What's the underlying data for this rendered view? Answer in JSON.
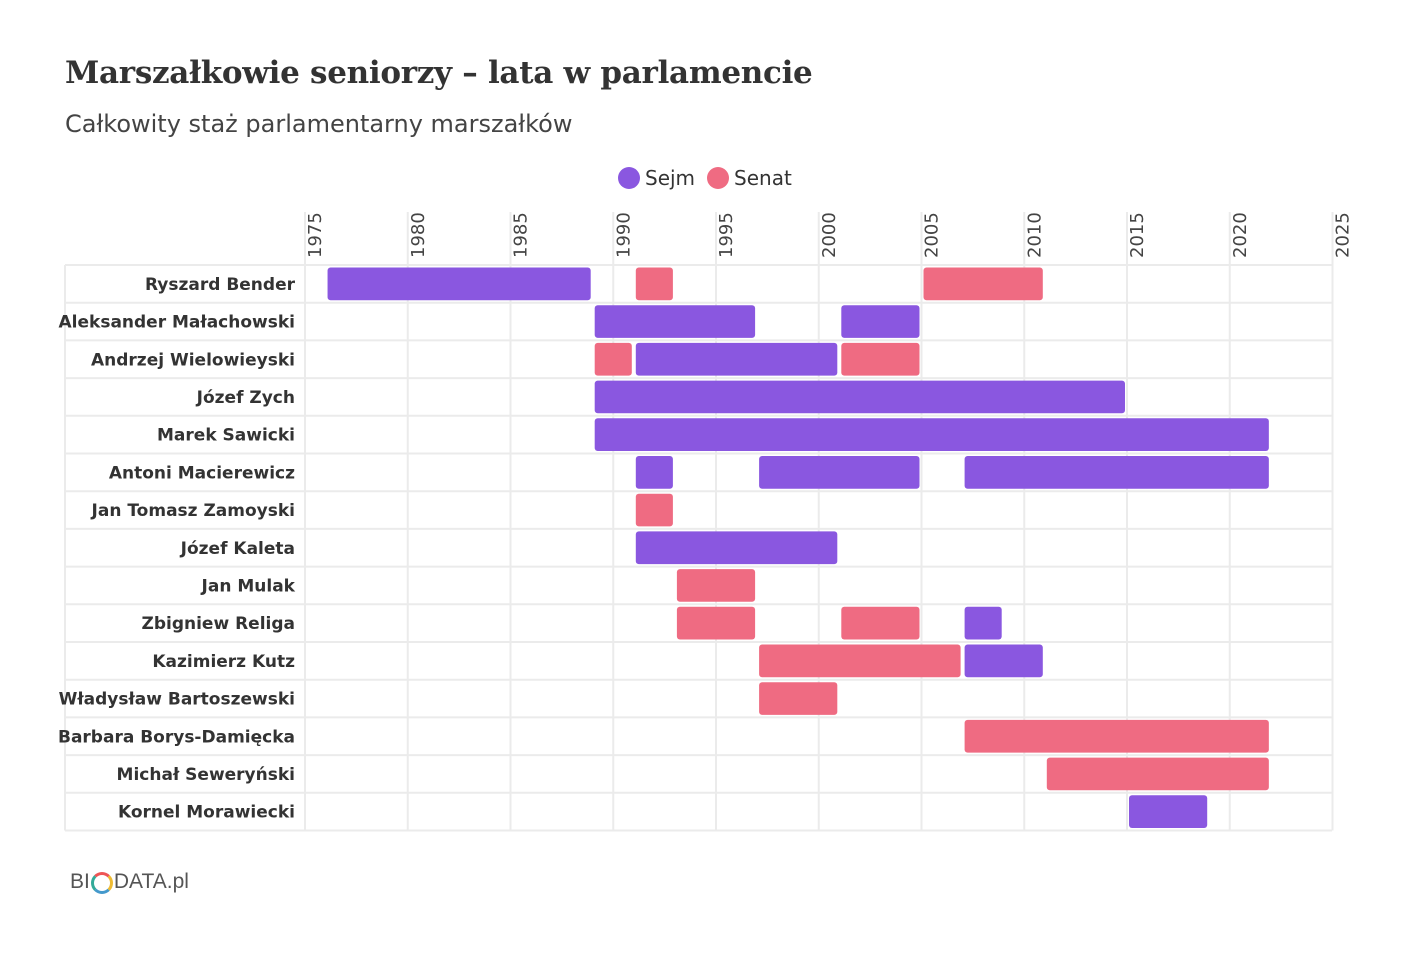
{
  "header": {
    "title": "Marszałkowie seniorzy – lata w parlamencie",
    "subtitle": "Całkowity staż parlamentarny marszałków"
  },
  "legend": {
    "sejm": "Sejm",
    "senat": "Senat"
  },
  "colors": {
    "sejm": "#8a57e0",
    "senat": "#ef6b82"
  },
  "logo": {
    "part1": "BI",
    "part2": "DATA.pl"
  },
  "chart_data": {
    "type": "bar",
    "orientation": "horizontal-timeline",
    "xlim": [
      1969,
      2025
    ],
    "x_ticks": [
      1975,
      1980,
      1985,
      1990,
      1995,
      2000,
      2005,
      2010,
      2015,
      2020,
      2025
    ],
    "grid": true,
    "legend_position": "top-center",
    "categories": [
      "Ryszard Bender",
      "Aleksander Małachowski",
      "Andrzej Wielowieyski",
      "Józef Zych",
      "Marek Sawicki",
      "Antoni Macierewicz",
      "Jan Tomasz Zamoyski",
      "Józef Kaleta",
      "Jan Mulak",
      "Zbigniew Religa",
      "Kazimierz Kutz",
      "Władysław Bartoszewski",
      "Barbara Borys-Damięcka",
      "Michał Seweryński",
      "Kornel Morawiecki"
    ],
    "series": [
      {
        "name": "Sejm",
        "segments": [
          {
            "row": 0,
            "start": 1976.0,
            "end": 1989.0
          },
          {
            "row": 1,
            "start": 1989.0,
            "end": 1997.0
          },
          {
            "row": 1,
            "start": 2001.0,
            "end": 2005.0
          },
          {
            "row": 2,
            "start": 1991.0,
            "end": 2001.0
          },
          {
            "row": 3,
            "start": 1989.0,
            "end": 2015.0
          },
          {
            "row": 4,
            "start": 1989.0,
            "end": 2022.0
          },
          {
            "row": 5,
            "start": 1991.0,
            "end": 1993.0
          },
          {
            "row": 5,
            "start": 1997.0,
            "end": 2005.0
          },
          {
            "row": 5,
            "start": 2007.0,
            "end": 2022.0
          },
          {
            "row": 7,
            "start": 1991.0,
            "end": 2001.0
          },
          {
            "row": 9,
            "start": 2007.0,
            "end": 2009.0
          },
          {
            "row": 10,
            "start": 2007.0,
            "end": 2011.0
          },
          {
            "row": 14,
            "start": 2015.0,
            "end": 2019.0
          }
        ]
      },
      {
        "name": "Senat",
        "segments": [
          {
            "row": 0,
            "start": 1991.0,
            "end": 1993.0
          },
          {
            "row": 0,
            "start": 2005.0,
            "end": 2011.0
          },
          {
            "row": 2,
            "start": 1989.0,
            "end": 1991.0
          },
          {
            "row": 2,
            "start": 2001.0,
            "end": 2005.0
          },
          {
            "row": 6,
            "start": 1991.0,
            "end": 1993.0
          },
          {
            "row": 8,
            "start": 1993.0,
            "end": 1997.0
          },
          {
            "row": 9,
            "start": 1993.0,
            "end": 1997.0
          },
          {
            "row": 9,
            "start": 2001.0,
            "end": 2005.0
          },
          {
            "row": 10,
            "start": 1997.0,
            "end": 2007.0
          },
          {
            "row": 11,
            "start": 1997.0,
            "end": 2001.0
          },
          {
            "row": 12,
            "start": 2007.0,
            "end": 2022.0
          },
          {
            "row": 13,
            "start": 2011.0,
            "end": 2022.0
          }
        ]
      }
    ]
  }
}
